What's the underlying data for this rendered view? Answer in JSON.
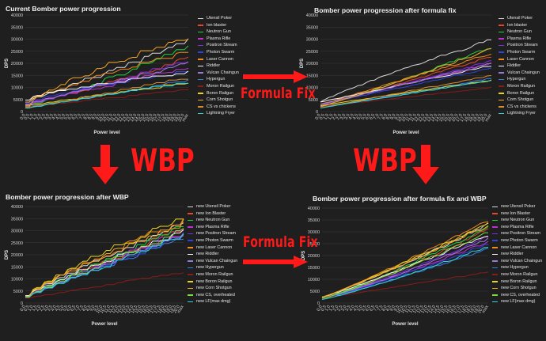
{
  "annotations": {
    "formula_fix_top": "Formula Fix",
    "formula_fix_bottom": "Formula Fix",
    "wbp_left": "WBP",
    "wbp_right": "WBP"
  },
  "colors": {
    "arrow": "#ff1a1a",
    "grid": "#3a3a3a",
    "background": "#1f1f1f"
  },
  "chart_data": [
    {
      "type": "line",
      "title": "Current Bomber power progression",
      "xlabel": "Power level",
      "ylabel": "DPS",
      "ylim": [
        0,
        40000
      ],
      "yticks": [
        0,
        5000,
        10000,
        15000,
        20000,
        25000,
        30000,
        35000,
        40000
      ],
      "x": [
        "0.0",
        "0.5",
        "1.0",
        "1.5",
        "2.0",
        "2.5",
        "3.0",
        "3.5",
        "4.0",
        "4.5",
        "5.0",
        "5.5",
        "6.0",
        "6.5",
        "7.0",
        "7.5",
        "8.0",
        "8.5",
        "9.0",
        "9.5",
        "10.0",
        "10.5",
        "11.0",
        "11.5",
        "12.0",
        "12.5",
        "13.0",
        "13.5",
        "14.0",
        "14.5",
        "15.0",
        "15.5",
        "16.0",
        "16.5",
        "17.0",
        "17.5",
        "18.0",
        "18.5",
        "19.0",
        "19.5",
        "20.0",
        "max"
      ],
      "grid": true,
      "legend_position": "right",
      "series": [
        {
          "name": "Utensil Poker",
          "color": "#d9d9d9",
          "start": 4000,
          "end": 29000,
          "curve": 1.0
        },
        {
          "name": "Ion blaster",
          "color": "#e8452c",
          "start": 3000,
          "end": 22000,
          "curve": 1.1
        },
        {
          "name": "Neutron Gun",
          "color": "#1fcf3f",
          "start": 2500,
          "end": 27000,
          "curve": 1.15
        },
        {
          "name": "Plasma Rifle",
          "color": "#c02fd6",
          "start": 3000,
          "end": 18000,
          "curve": 0.9
        },
        {
          "name": "Positron Stream",
          "color": "#7b2de0",
          "start": 2500,
          "end": 21000,
          "curve": 1.0
        },
        {
          "name": "Photon Swarm",
          "color": "#2f42e0",
          "start": 3500,
          "end": 17000,
          "curve": 0.8
        },
        {
          "name": "Laser Cannon",
          "color": "#f28a1c",
          "start": 4000,
          "end": 25000,
          "curve": 0.85
        },
        {
          "name": "Riddler",
          "color": "#f5f5f5",
          "start": 5000,
          "end": 16000,
          "curve": 0.7
        },
        {
          "name": "Vulcan Chaingun",
          "color": "#9a7ad8",
          "start": 3000,
          "end": 20000,
          "curve": 1.0
        },
        {
          "name": "Hypergun",
          "color": "#3b7be8",
          "start": 2000,
          "end": 13000,
          "curve": 1.1
        },
        {
          "name": "Moron Railgun",
          "color": "#8b1a1a",
          "start": 2000,
          "end": 9000,
          "curve": 1.0
        },
        {
          "name": "Boron Railgun",
          "color": "#e8d41f",
          "start": 2500,
          "end": 12000,
          "curve": 1.0
        },
        {
          "name": "Corn Shotgun",
          "color": "#f5a623",
          "start": 2000,
          "end": 31000,
          "curve": 0.75
        },
        {
          "name": "CS vs chickens",
          "color": "#d98a2b",
          "start": 1500,
          "end": 14000,
          "curve": 1.0
        },
        {
          "name": "Lightning Fryer",
          "color": "#2fd8d8",
          "start": 1500,
          "end": 12500,
          "curve": 1.0
        }
      ]
    },
    {
      "type": "line",
      "title": "Bomber power progression after formula fix",
      "xlabel": "Power level",
      "ylabel": "DPS",
      "ylim": [
        0,
        40000
      ],
      "yticks": [
        0,
        5000,
        10000,
        15000,
        20000,
        25000,
        30000,
        35000,
        40000
      ],
      "x": [
        "0.0",
        "0.5",
        "1.0",
        "1.5",
        "2.0",
        "2.5",
        "3.0",
        "3.5",
        "4.0",
        "4.5",
        "5.0",
        "5.5",
        "6.0",
        "6.5",
        "7.0",
        "7.5",
        "8.0",
        "8.5",
        "9.0",
        "9.5",
        "10.0",
        "10.5",
        "11.0",
        "11.5",
        "12.0",
        "12.5",
        "13.0",
        "13.5",
        "14.0",
        "14.5",
        "15.0",
        "15.5",
        "16.0",
        "16.5",
        "17.0",
        "17.5",
        "18.0",
        "18.5",
        "19.0",
        "19.5",
        "20.0",
        "max"
      ],
      "grid": true,
      "legend_position": "right",
      "series": [
        {
          "name": "Utensil Poker",
          "color": "#d9d9d9",
          "start": 4000,
          "end": 30000,
          "curve": 0.9
        },
        {
          "name": "Ion blaster",
          "color": "#e8452c",
          "start": 3000,
          "end": 23000,
          "curve": 1.1
        },
        {
          "name": "Neutron Gun",
          "color": "#1fcf3f",
          "start": 2500,
          "end": 27000,
          "curve": 1.15
        },
        {
          "name": "Plasma Rifle",
          "color": "#c02fd6",
          "start": 3000,
          "end": 20000,
          "curve": 1.0
        },
        {
          "name": "Positron Stream",
          "color": "#7b2de0",
          "start": 2500,
          "end": 21000,
          "curve": 1.0
        },
        {
          "name": "Photon Swarm",
          "color": "#2f42e0",
          "start": 3000,
          "end": 18000,
          "curve": 1.0
        },
        {
          "name": "Laser Cannon",
          "color": "#f28a1c",
          "start": 3000,
          "end": 24000,
          "curve": 1.0
        },
        {
          "name": "Riddler",
          "color": "#f5f5f5",
          "start": 4000,
          "end": 19000,
          "curve": 1.0
        },
        {
          "name": "Vulcan Chaingun",
          "color": "#9a7ad8",
          "start": 3000,
          "end": 20000,
          "curve": 1.0
        },
        {
          "name": "Hypergun",
          "color": "#3b7be8",
          "start": 2000,
          "end": 14000,
          "curve": 1.1
        },
        {
          "name": "Moron Railgun",
          "color": "#8b1a1a",
          "start": 2000,
          "end": 10000,
          "curve": 1.0
        },
        {
          "name": "Boron Railgun",
          "color": "#e8d41f",
          "start": 2500,
          "end": 13000,
          "curve": 1.0
        },
        {
          "name": "Corn Shotgun",
          "color": "#f5a623",
          "start": 2000,
          "end": 26000,
          "curve": 1.05
        },
        {
          "name": "CS vs chickens",
          "color": "#d98a2b",
          "start": 1500,
          "end": 15000,
          "curve": 1.0
        },
        {
          "name": "Lightning Fryer",
          "color": "#2fd8d8",
          "start": 1500,
          "end": 13000,
          "curve": 1.0
        }
      ]
    },
    {
      "type": "line",
      "title": "Bomber power progression after WBP",
      "xlabel": "Power level",
      "ylabel": "DPS",
      "ylim": [
        0,
        40000
      ],
      "yticks": [
        0,
        5000,
        10000,
        15000,
        20000,
        25000,
        30000,
        35000,
        40000
      ],
      "x": [
        "0.0",
        "0.5",
        "1.0",
        "1.5",
        "2.0",
        "2.5",
        "3.0",
        "3.5",
        "4.0",
        "4.5",
        "5.0",
        "5.5",
        "6.0",
        "6.5",
        "7.0",
        "7.5",
        "8.0",
        "8.5",
        "9.0",
        "9.5",
        "10.0",
        "10.5",
        "11.0",
        "11.5",
        "12.0",
        "12.5",
        "13.0",
        "13.5",
        "14.0",
        "14.5",
        "15.0",
        "15.5",
        "16.0",
        "16.5",
        "17.0",
        "17.5",
        "18.0",
        "18.5",
        "19.0",
        "19.5",
        "20.0",
        "max"
      ],
      "grid": true,
      "legend_position": "right",
      "series": [
        {
          "name": "new Utensil Poker",
          "color": "#d9d9d9",
          "start": 3000,
          "end": 33000,
          "curve": 0.9
        },
        {
          "name": "new Ion Blaster",
          "color": "#e8452c",
          "start": 2500,
          "end": 31000,
          "curve": 0.95
        },
        {
          "name": "new Neutron Gun",
          "color": "#1fcf3f",
          "start": 2500,
          "end": 32000,
          "curve": 0.95
        },
        {
          "name": "new Plasma Rifle",
          "color": "#c02fd6",
          "start": 2500,
          "end": 29000,
          "curve": 0.95
        },
        {
          "name": "new Positron Stream",
          "color": "#7b2de0",
          "start": 2500,
          "end": 30000,
          "curve": 0.95
        },
        {
          "name": "new Photon Swarm",
          "color": "#2f42e0",
          "start": 2500,
          "end": 28000,
          "curve": 0.95
        },
        {
          "name": "new Laser Cannon",
          "color": "#f28a1c",
          "start": 3000,
          "end": 34000,
          "curve": 0.85
        },
        {
          "name": "new Riddler",
          "color": "#f5f5f5",
          "start": 3000,
          "end": 30000,
          "curve": 0.9
        },
        {
          "name": "new Vulcan Chaingun",
          "color": "#9a7ad8",
          "start": 2500,
          "end": 29000,
          "curve": 0.95
        },
        {
          "name": "new Hypergun",
          "color": "#3b7be8",
          "start": 2500,
          "end": 27000,
          "curve": 0.95
        },
        {
          "name": "new Moron Railgun",
          "color": "#8b1a1a",
          "start": 2000,
          "end": 13000,
          "curve": 1.0
        },
        {
          "name": "new Boron Railgun",
          "color": "#e8d41f",
          "start": 2500,
          "end": 35000,
          "curve": 0.8
        },
        {
          "name": "new Corn Shotgun",
          "color": "#f5a623",
          "start": 3000,
          "end": 33000,
          "curve": 0.85
        },
        {
          "name": "new CS, overheated",
          "color": "#7fd83a",
          "start": 2500,
          "end": 30000,
          "curve": 0.95
        },
        {
          "name": "new LF(max dmg)",
          "color": "#2fd8d8",
          "start": 2500,
          "end": 28000,
          "curve": 0.95
        }
      ]
    },
    {
      "type": "line",
      "title": "Bomber power progression after formula fix and WBP",
      "xlabel": "Power level",
      "ylabel": "DPS",
      "ylim": [
        0,
        40000
      ],
      "yticks": [
        0,
        5000,
        10000,
        15000,
        20000,
        25000,
        30000,
        35000,
        40000
      ],
      "x": [
        "0.0",
        "0.5",
        "1.0",
        "1.5",
        "2.0",
        "2.5",
        "3.0",
        "3.5",
        "4.0",
        "4.5",
        "5.0",
        "5.5",
        "6.0",
        "6.5",
        "7.0",
        "7.5",
        "8.0",
        "8.5",
        "9.0",
        "9.5",
        "10.0",
        "10.5",
        "11.0",
        "11.5",
        "12.0",
        "12.5",
        "13.0",
        "13.5",
        "14.0",
        "14.5",
        "15.0",
        "15.5",
        "16.0",
        "16.5",
        "17.0",
        "17.5",
        "18.0",
        "18.5",
        "19.0",
        "19.5",
        "20.0",
        "max"
      ],
      "grid": true,
      "legend_position": "right",
      "series": [
        {
          "name": "new Utensil Poker",
          "color": "#d9d9d9",
          "start": 2500,
          "end": 33000,
          "curve": 1.1
        },
        {
          "name": "new Ion Blaster",
          "color": "#e8452c",
          "start": 2000,
          "end": 31000,
          "curve": 1.15
        },
        {
          "name": "new Neutron Gun",
          "color": "#1fcf3f",
          "start": 2000,
          "end": 32000,
          "curve": 1.15
        },
        {
          "name": "new Plasma Rifle",
          "color": "#c02fd6",
          "start": 2000,
          "end": 26000,
          "curve": 1.15
        },
        {
          "name": "new Positron Stream",
          "color": "#7b2de0",
          "start": 2000,
          "end": 28000,
          "curve": 1.15
        },
        {
          "name": "new Photon Swarm",
          "color": "#2f42e0",
          "start": 2000,
          "end": 25000,
          "curve": 1.15
        },
        {
          "name": "new Laser Cannon",
          "color": "#f28a1c",
          "start": 2500,
          "end": 35000,
          "curve": 1.1
        },
        {
          "name": "new Riddler",
          "color": "#f5f5f5",
          "start": 2500,
          "end": 29000,
          "curve": 1.1
        },
        {
          "name": "new Vulcan Chaingun",
          "color": "#9a7ad8",
          "start": 2000,
          "end": 27000,
          "curve": 1.15
        },
        {
          "name": "new Hypergun",
          "color": "#3b7be8",
          "start": 2000,
          "end": 23000,
          "curve": 1.15
        },
        {
          "name": "new Moron Railgun",
          "color": "#8b1a1a",
          "start": 2000,
          "end": 13000,
          "curve": 1.0
        },
        {
          "name": "new Boron Railgun",
          "color": "#e8d41f",
          "start": 2500,
          "end": 34000,
          "curve": 1.1
        },
        {
          "name": "new Corn Shotgun",
          "color": "#f5a623",
          "start": 2500,
          "end": 33000,
          "curve": 1.1
        },
        {
          "name": "new CS, overheated",
          "color": "#7fd83a",
          "start": 2000,
          "end": 30000,
          "curve": 1.15
        },
        {
          "name": "new LF(max dmg)",
          "color": "#2fd8d8",
          "start": 1500,
          "end": 24000,
          "curve": 1.15
        }
      ]
    }
  ]
}
